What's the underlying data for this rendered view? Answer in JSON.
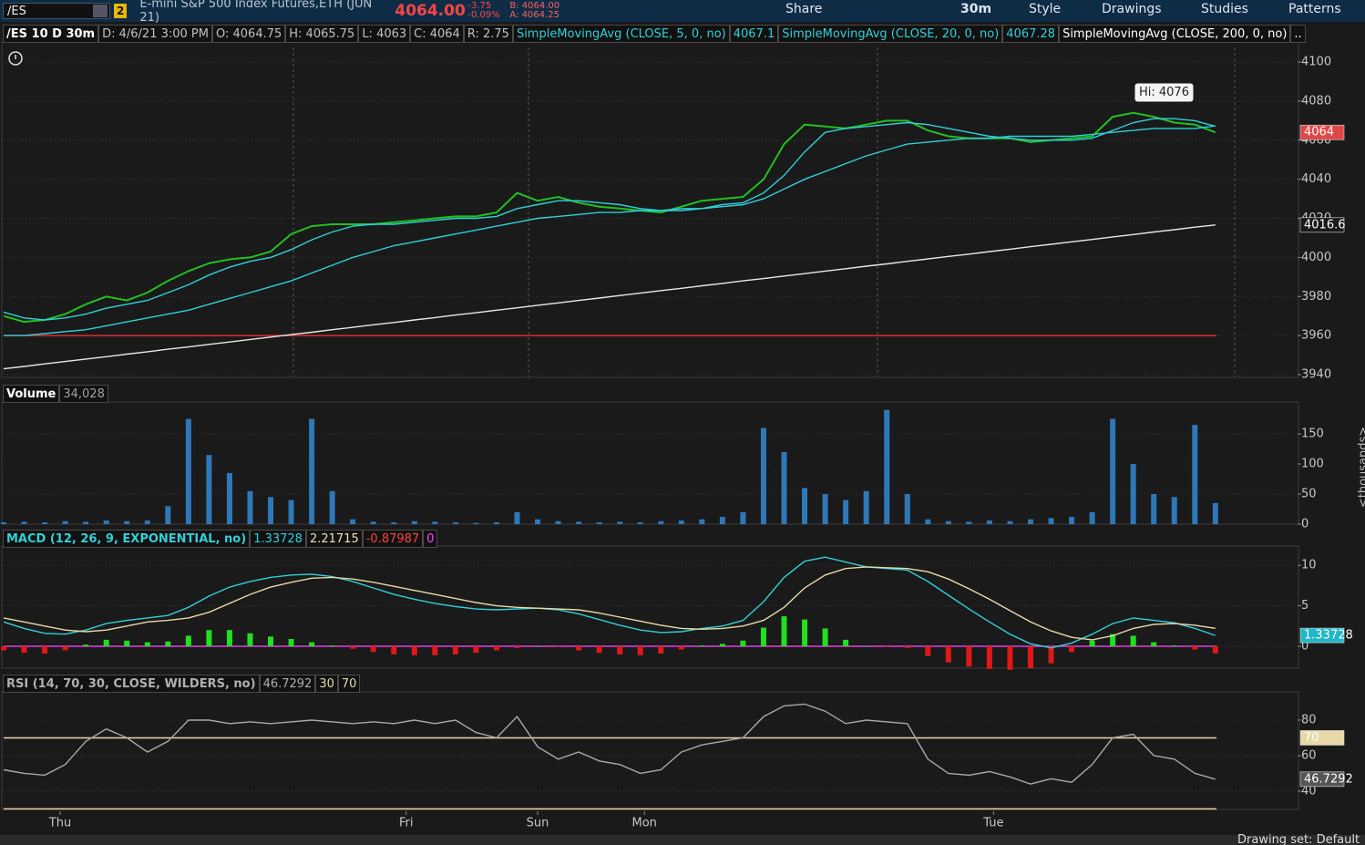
{
  "toolbar": {
    "symbol": "/ES",
    "badge": "2",
    "description": "E-mini S&P 500 Index Futures,ETH (JUN 21)",
    "last": "4064.00",
    "change": "-3.75",
    "change_pct": "-0.09%",
    "bid": "B: 4064.00",
    "ask": "A: 4064.25",
    "buttons": [
      "Share",
      "30m",
      "Style",
      "Drawings",
      "Studies",
      "Patterns"
    ]
  },
  "footer": "Drawing set: Default",
  "chart_data": [
    {
      "type": "line",
      "xlim": [
        0,
        63
      ],
      "ylim": [
        3938.6,
        4107.5
      ],
      "yticks": [
        3940,
        3960,
        3980,
        4000,
        4020,
        4040,
        4060,
        4080,
        4100
      ],
      "grid": true,
      "header": [
        {
          "text": "/ES 10 D 30m",
          "color": "#ffffff"
        },
        {
          "text": "D: 4/6/21 3:00 PM",
          "color": "#c0c0c0"
        },
        {
          "text": "O: 4064.75",
          "color": "#c0c0c0"
        },
        {
          "text": "H: 4065.75",
          "color": "#c0c0c0"
        },
        {
          "text": "L: 4063",
          "color": "#c0c0c0"
        },
        {
          "text": "C: 4064",
          "color": "#c0c0c0"
        },
        {
          "text": "R: 2.75",
          "color": "#c0c0c0"
        },
        {
          "text": "SimpleMovingAvg (CLOSE, 5, 0, no)",
          "color": "#2fd0d8"
        },
        {
          "text": "4067.1",
          "color": "#2fd0d8"
        },
        {
          "text": "SimpleMovingAvg (CLOSE, 20, 0, no)",
          "color": "#2fd0d8"
        },
        {
          "text": "4067.28",
          "color": "#2fd0d8"
        },
        {
          "text": "SimpleMovingAvg (CLOSE, 200, 0, no)",
          "color": "#ffffff"
        },
        {
          "text": "..",
          "color": "#ffffff"
        }
      ],
      "series": [
        {
          "name": "/ES",
          "color": "#20c020",
          "values": [
            3970,
            3967,
            3968,
            3971,
            3976,
            3980,
            3978,
            3982,
            3988,
            3993,
            3997,
            3999,
            4000,
            4003,
            4012,
            4016,
            4017,
            4017,
            4017,
            4018,
            4019,
            4020,
            4021,
            4021,
            4023,
            4033,
            4029,
            4031,
            4028,
            4026,
            4025,
            4024,
            4023,
            4026,
            4029,
            4030,
            4031,
            4040,
            4058,
            4068,
            4067,
            4066,
            4068,
            4070,
            4070,
            4065,
            4062,
            4061,
            4061,
            4061,
            4059,
            4060,
            4061,
            4062,
            4072,
            4074,
            4072,
            4069,
            4068,
            4064
          ]
        },
        {
          "name": "SMA 5",
          "color": "#2fd0d8",
          "values": [
            3972,
            3969,
            3968,
            3969,
            3971,
            3974,
            3976,
            3978,
            3982,
            3986,
            3991,
            3995,
            3998,
            4000,
            4004,
            4009,
            4013,
            4016,
            4017,
            4017,
            4018,
            4019,
            4020,
            4020,
            4021,
            4025,
            4027,
            4029,
            4029,
            4028,
            4027,
            4025,
            4024,
            4024,
            4025,
            4027,
            4028,
            4033,
            4042,
            4054,
            4064,
            4066,
            4067,
            4068,
            4069,
            4068,
            4066,
            4064,
            4062,
            4061,
            4060,
            4060,
            4060,
            4061,
            4065,
            4069,
            4071,
            4071,
            4070,
            4067.1
          ]
        },
        {
          "name": "SMA 20",
          "color": "#2fd0d8",
          "values": [
            3960,
            3960,
            3961,
            3962,
            3963,
            3965,
            3967,
            3969,
            3971,
            3973,
            3976,
            3979,
            3982,
            3985,
            3988,
            3992,
            3996,
            4000,
            4003,
            4006,
            4008,
            4010,
            4012,
            4014,
            4016,
            4018,
            4020,
            4021,
            4022,
            4023,
            4023,
            4024,
            4024,
            4025,
            4025,
            4026,
            4027,
            4030,
            4035,
            4040,
            4044,
            4048,
            4052,
            4055,
            4058,
            4059,
            4060,
            4061,
            4061,
            4062,
            4062,
            4062,
            4062,
            4063,
            4064,
            4065,
            4066,
            4066,
            4066,
            4067.28
          ]
        },
        {
          "name": "SMA 200",
          "color": "#e8e8e8",
          "values": [
            3943,
            3944.2,
            3945.5,
            3946.7,
            3948,
            3949.2,
            3950.5,
            3951.7,
            3953,
            3954.2,
            3955.5,
            3956.7,
            3958,
            3959.2,
            3960.5,
            3961.7,
            3963,
            3964.2,
            3965.5,
            3966.7,
            3968,
            3969.2,
            3970.5,
            3971.7,
            3973,
            3974.2,
            3975.5,
            3976.7,
            3978,
            3979.2,
            3980.5,
            3981.7,
            3983,
            3984.2,
            3985.5,
            3986.7,
            3988,
            3989.2,
            3990.5,
            3991.7,
            3993,
            3994.2,
            3995.5,
            3996.7,
            3998,
            3999.2,
            4000.5,
            4001.7,
            4003,
            4004.2,
            4005.5,
            4006.7,
            4008,
            4009.2,
            4010.5,
            4011.7,
            4013,
            4014.2,
            4015.5,
            4016.6
          ]
        }
      ],
      "levels": [
        {
          "value": 3960,
          "color": "#d83030"
        }
      ],
      "tags": [
        {
          "value": 4064,
          "label": "4064",
          "color": "#e04848"
        },
        {
          "value": 4016.6,
          "label": "4016.6",
          "color": "#1a1a1a"
        }
      ],
      "annotation": {
        "x": 56.5,
        "value": 4076,
        "label": "Hi: 4076"
      }
    },
    {
      "type": "bar",
      "xlim": [
        0,
        63
      ],
      "ylim": [
        0,
        194
      ],
      "yticks": [
        0,
        50,
        100,
        150
      ],
      "grid": true,
      "y_label": "<thousands>",
      "header": [
        {
          "text": "Volume",
          "color": "#ffffff"
        },
        {
          "text": "34,028",
          "color": "#a0a0a0"
        }
      ],
      "series": [
        {
          "name": "Volume",
          "type": "bar",
          "color": "#2f78b8",
          "values": [
            3,
            4,
            3,
            5,
            4,
            6,
            5,
            6,
            30,
            175,
            115,
            85,
            55,
            45,
            40,
            175,
            55,
            8,
            4,
            3,
            5,
            4,
            3,
            2,
            3,
            20,
            8,
            5,
            4,
            3,
            4,
            3,
            5,
            6,
            8,
            12,
            20,
            160,
            120,
            60,
            50,
            40,
            55,
            190,
            50,
            8,
            5,
            4,
            6,
            5,
            8,
            10,
            12,
            20,
            175,
            100,
            50,
            45,
            165,
            35
          ]
        }
      ]
    },
    {
      "type": "line",
      "xlim": [
        0,
        63
      ],
      "ylim": [
        -2.7,
        11.7
      ],
      "yticks": [
        0,
        5,
        10
      ],
      "grid": true,
      "header": [
        {
          "text": "MACD (12, 26, 9, EXPONENTIAL, no)",
          "color": "#2fd0d8"
        },
        {
          "text": "1.33728",
          "color": "#2fd0d8"
        },
        {
          "text": "2.21715",
          "color": "#f0e0b0"
        },
        {
          "text": "-0.87987",
          "color": "#ff4040"
        },
        {
          "text": "0",
          "color": "#ff40ff"
        }
      ],
      "series": [
        {
          "name": "Diff",
          "type": "bar",
          "color": "#20e020",
          "negative_color": "#e01818",
          "values": [
            -0.5,
            -0.8,
            -0.9,
            -0.5,
            0.2,
            0.8,
            0.7,
            0.5,
            0.6,
            1.3,
            2.0,
            2.0,
            1.6,
            1.2,
            0.9,
            0.5,
            0.1,
            -0.3,
            -0.7,
            -1.0,
            -1.1,
            -1.1,
            -1.0,
            -0.8,
            -0.5,
            -0.2,
            0,
            -0.1,
            -0.5,
            -0.8,
            -1.0,
            -1.1,
            -0.9,
            -0.4,
            0.1,
            0.3,
            0.7,
            2.3,
            3.7,
            3.3,
            2.2,
            0.8,
            0,
            -0.1,
            -0.2,
            -1.2,
            -2.0,
            -2.5,
            -2.8,
            -2.9,
            -2.7,
            -2.1,
            -0.7,
            0.7,
            1.5,
            1.3,
            0.5,
            0.1,
            -0.4,
            -0.87987
          ]
        },
        {
          "name": "Value",
          "color": "#2fd0d8",
          "values": [
            3.0,
            2.2,
            1.6,
            1.5,
            2.0,
            2.8,
            3.2,
            3.5,
            3.8,
            4.8,
            6.2,
            7.3,
            8.0,
            8.5,
            8.8,
            8.9,
            8.6,
            8.0,
            7.2,
            6.4,
            5.8,
            5.3,
            4.9,
            4.6,
            4.5,
            4.6,
            4.7,
            4.5,
            4.0,
            3.3,
            2.6,
            2.0,
            1.7,
            1.8,
            2.2,
            2.5,
            3.2,
            5.5,
            8.5,
            10.5,
            11.0,
            10.4,
            9.8,
            9.6,
            9.4,
            8.0,
            6.3,
            4.6,
            3.0,
            1.5,
            0.3,
            -0.2,
            0.4,
            1.5,
            2.8,
            3.5,
            3.2,
            2.9,
            2.2,
            1.33728
          ]
        },
        {
          "name": "Avg",
          "color": "#e8d8a8",
          "values": [
            3.5,
            3.0,
            2.5,
            2.0,
            1.8,
            2.0,
            2.5,
            3.0,
            3.2,
            3.5,
            4.2,
            5.3,
            6.4,
            7.3,
            7.9,
            8.4,
            8.5,
            8.3,
            7.9,
            7.4,
            6.9,
            6.4,
            5.9,
            5.4,
            5.0,
            4.8,
            4.7,
            4.6,
            4.5,
            4.1,
            3.6,
            3.1,
            2.6,
            2.2,
            2.1,
            2.2,
            2.5,
            3.2,
            4.8,
            7.2,
            8.8,
            9.6,
            9.8,
            9.7,
            9.6,
            9.2,
            8.3,
            7.1,
            5.8,
            4.4,
            3.0,
            1.9,
            1.1,
            0.8,
            1.3,
            2.2,
            2.7,
            2.8,
            2.6,
            2.21715
          ]
        }
      ],
      "levels": [
        {
          "value": 0,
          "color": "#e040e0"
        }
      ],
      "tags": [
        {
          "value": 1.33728,
          "label": "1.33728",
          "color": "#20b8c8"
        }
      ]
    },
    {
      "type": "line",
      "xlim": [
        0,
        63
      ],
      "ylim": [
        29.7,
        92.8
      ],
      "yticks": [
        40,
        60,
        80
      ],
      "grid": true,
      "xticks": [
        {
          "value": 2.75,
          "label": "Thu"
        },
        {
          "value": 19.6,
          "label": "Fri"
        },
        {
          "value": 26.0,
          "label": "Sun"
        },
        {
          "value": 31.2,
          "label": "Mon"
        },
        {
          "value": 48.2,
          "label": "Tue"
        }
      ],
      "header": [
        {
          "text": "RSI (14, 70, 30, CLOSE, WILDERS, no)",
          "color": "#b0b0b0"
        },
        {
          "text": "46.7292",
          "color": "#b0b0b0"
        },
        {
          "text": "30",
          "color": "#e8d8a8"
        },
        {
          "text": "70",
          "color": "#e8d8a8"
        }
      ],
      "series": [
        {
          "name": "RSI",
          "color": "#a8a8a8",
          "values": [
            52,
            50,
            49,
            55,
            68,
            75,
            70,
            62,
            68,
            80,
            80,
            78,
            79,
            78,
            79,
            80,
            79,
            78,
            79,
            78,
            80,
            78,
            80,
            73,
            70,
            82,
            65,
            58,
            62,
            57,
            55,
            50,
            52,
            62,
            66,
            68,
            70,
            82,
            88,
            89,
            85,
            78,
            80,
            79,
            78,
            58,
            50,
            49,
            51,
            48,
            44,
            47,
            45,
            55,
            70,
            72,
            60,
            58,
            50,
            46.7292
          ]
        }
      ],
      "levels": [
        {
          "value": 70,
          "color": "#e8d8a8"
        },
        {
          "value": 30,
          "color": "#e8d8a8"
        }
      ],
      "tags": [
        {
          "value": 70,
          "label": "70",
          "color": "#e8d8a8"
        },
        {
          "value": 46.7292,
          "label": "46.7292",
          "color": "#555555"
        }
      ]
    }
  ]
}
